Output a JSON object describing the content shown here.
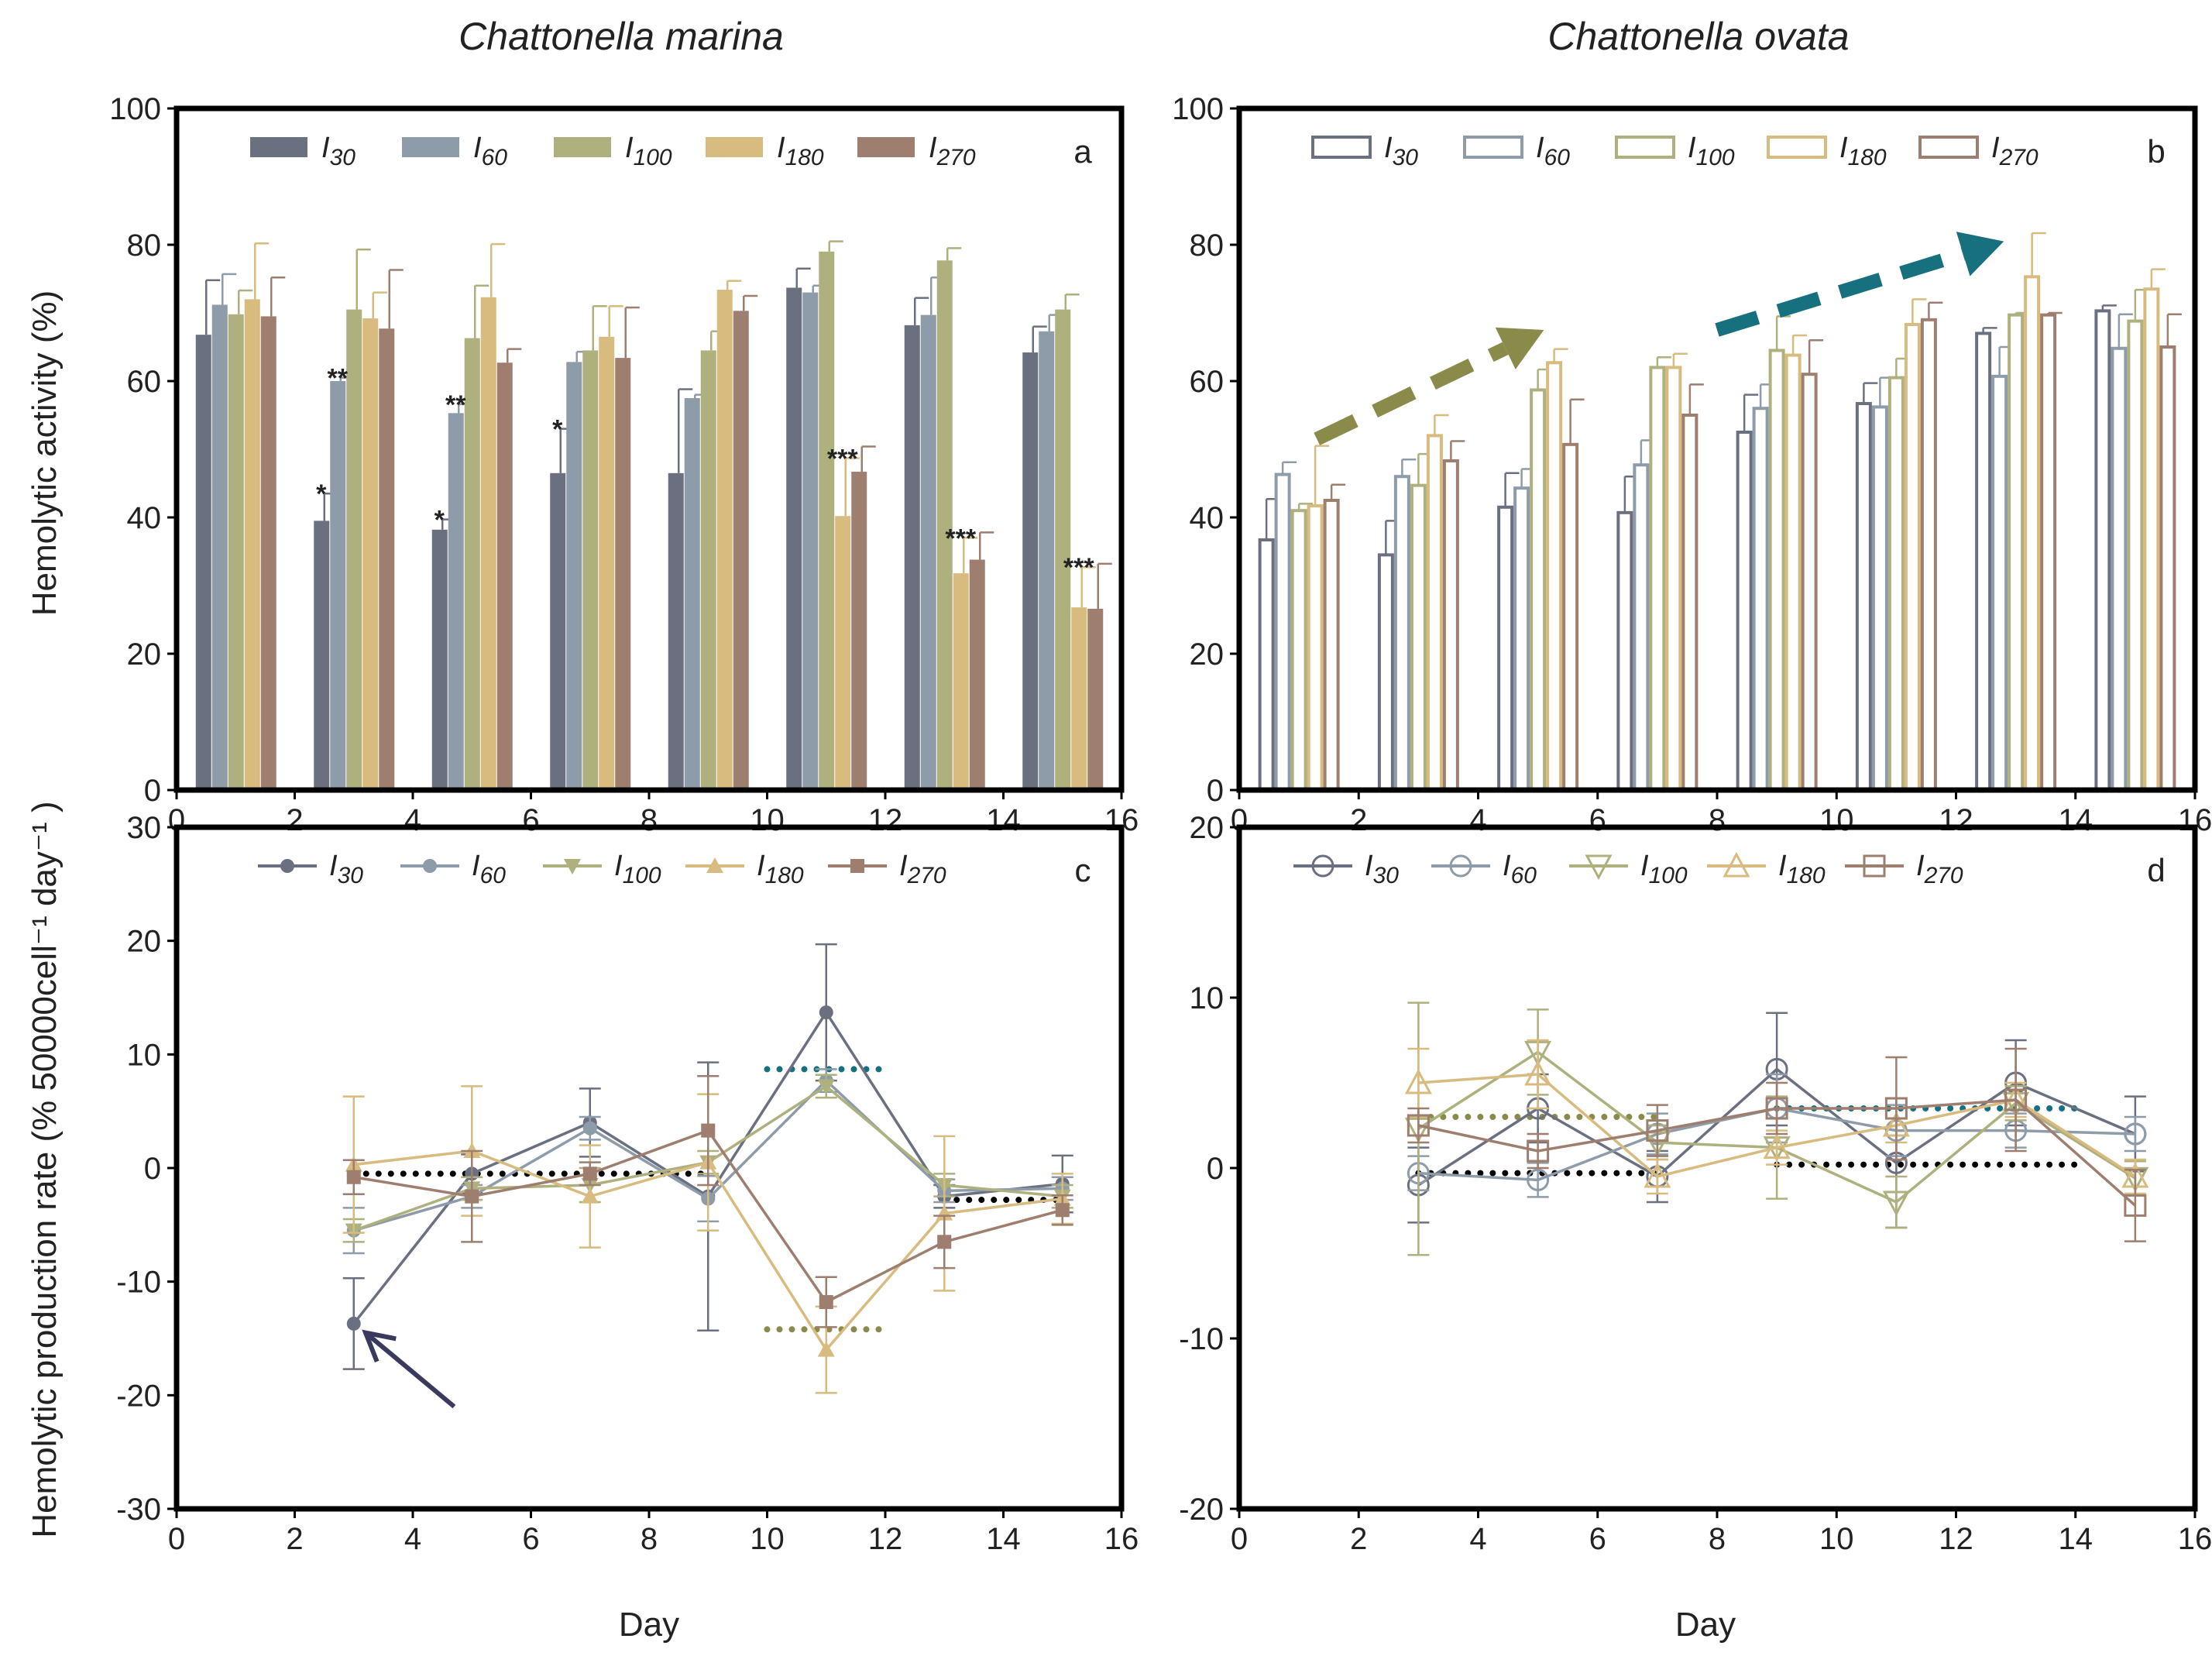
{
  "titles": {
    "left": "Chattonella marina",
    "right": "Chattonella ovata"
  },
  "axes": {
    "xlabel": "Day",
    "ylabel_top": "Hemolytic activity (%)",
    "ylabel_bottom": "Hemolytic production rate (% 50000cell⁻¹ day⁻¹ )"
  },
  "colors": {
    "I30": "#6b7080",
    "I60": "#8e9ba8",
    "I100": "#aeb07e",
    "I180": "#d8bb7f",
    "I270": "#9e7e6e",
    "olive_arrow": "#8a8a4a",
    "teal_arrow": "#16707e",
    "navy_arrow": "#3a3a5e",
    "teal_dots": "#17707e",
    "olive_dots": "#8a8a4a",
    "black_dots": "#000000"
  },
  "legend_series": [
    {
      "key": "I30",
      "label": "I",
      "sub": "30"
    },
    {
      "key": "I60",
      "label": "I",
      "sub": "60"
    },
    {
      "key": "I100",
      "label": "I",
      "sub": "100"
    },
    {
      "key": "I180",
      "label": "I",
      "sub": "180"
    },
    {
      "key": "I270",
      "label": "I",
      "sub": "270"
    }
  ],
  "chart_data": [
    {
      "panel": "a",
      "type": "bar",
      "style": "filled",
      "xlabel": "",
      "ylabel": "Hemolytic activity (%)",
      "xlim": [
        0,
        16
      ],
      "ylim": [
        0,
        100
      ],
      "xticks": [
        0,
        2,
        4,
        6,
        8,
        10,
        12,
        14,
        16
      ],
      "yticks": [
        0,
        20,
        40,
        60,
        80,
        100
      ],
      "days": [
        1,
        3,
        5,
        7,
        9,
        11,
        13,
        15
      ],
      "series": [
        {
          "name": "I30",
          "values": [
            66.8,
            39.5,
            38.2,
            46.5,
            46.5,
            73.7,
            68.2,
            64.2
          ],
          "errors": [
            8.0,
            4.0,
            1.5,
            6.5,
            12.3,
            2.8,
            4.0,
            3.8
          ]
        },
        {
          "name": "I60",
          "values": [
            71.2,
            60.0,
            55.3,
            62.8,
            57.5,
            73.0,
            69.7,
            67.3
          ],
          "errors": [
            4.5,
            0.5,
            1.3,
            1.5,
            0.5,
            1.0,
            5.5,
            2.4
          ]
        },
        {
          "name": "I100",
          "values": [
            69.8,
            70.5,
            66.3,
            64.5,
            64.5,
            79.0,
            77.7,
            70.5
          ],
          "errors": [
            3.5,
            8.8,
            7.7,
            6.5,
            2.8,
            1.5,
            1.8,
            2.2
          ]
        },
        {
          "name": "I180",
          "values": [
            72.0,
            69.2,
            72.3,
            66.5,
            73.4,
            40.2,
            31.8,
            26.8
          ],
          "errors": [
            8.2,
            3.8,
            7.8,
            4.5,
            1.3,
            8.5,
            5.2,
            5.9
          ]
        },
        {
          "name": "I270",
          "values": [
            69.5,
            67.7,
            62.7,
            63.4,
            70.3,
            46.7,
            33.8,
            26.6
          ],
          "errors": [
            5.7,
            8.6,
            2.0,
            7.4,
            2.2,
            3.7,
            4.0,
            6.6
          ]
        }
      ],
      "annotations": [
        {
          "text": "*",
          "day": 3,
          "series": "I30"
        },
        {
          "text": "**",
          "day": 3,
          "series": "I60"
        },
        {
          "text": "*",
          "day": 5,
          "series": "I30"
        },
        {
          "text": "**",
          "day": 5,
          "series": "I60"
        },
        {
          "text": "*",
          "day": 7,
          "series": "I30"
        },
        {
          "text": "***",
          "day": 11,
          "series": "I180"
        },
        {
          "text": "***",
          "day": 13,
          "series": "I180"
        },
        {
          "text": "***",
          "day": 15,
          "series": "I180"
        }
      ]
    },
    {
      "panel": "b",
      "type": "bar",
      "style": "open",
      "xlabel": "",
      "ylabel": "",
      "xlim": [
        0,
        16
      ],
      "ylim": [
        0,
        100
      ],
      "xticks": [
        0,
        2,
        4,
        6,
        8,
        10,
        12,
        14,
        16
      ],
      "yticks": [
        0,
        20,
        40,
        60,
        80,
        100
      ],
      "days": [
        1,
        3,
        5,
        7,
        9,
        11,
        13,
        15
      ],
      "series": [
        {
          "name": "I30",
          "values": [
            36.7,
            34.5,
            41.5,
            40.7,
            52.5,
            56.7,
            67.0,
            70.3
          ],
          "errors": [
            6.0,
            5.0,
            5.0,
            5.3,
            5.5,
            3.0,
            0.8,
            0.8
          ]
        },
        {
          "name": "I60",
          "values": [
            46.3,
            46.0,
            44.3,
            47.7,
            56.0,
            56.2,
            60.7,
            64.8
          ],
          "errors": [
            1.8,
            2.5,
            2.8,
            3.6,
            3.5,
            4.3,
            4.3,
            5.0
          ]
        },
        {
          "name": "I100",
          "values": [
            41.0,
            44.7,
            58.7,
            62.0,
            64.5,
            60.5,
            69.7,
            68.8
          ],
          "errors": [
            1.0,
            4.6,
            3.0,
            1.5,
            5.0,
            2.8,
            0.3,
            4.6
          ]
        },
        {
          "name": "I180",
          "values": [
            41.7,
            52.0,
            62.7,
            62.0,
            63.8,
            68.3,
            75.3,
            73.5
          ],
          "errors": [
            8.8,
            3.0,
            2.0,
            2.0,
            2.9,
            3.7,
            6.4,
            2.9
          ]
        },
        {
          "name": "I270",
          "values": [
            42.5,
            48.3,
            50.7,
            55.0,
            61.0,
            69.0,
            69.7,
            65.0
          ],
          "errors": [
            2.3,
            2.9,
            6.6,
            4.5,
            5.0,
            2.5,
            0.3,
            4.8
          ]
        }
      ],
      "annotations": []
    },
    {
      "panel": "c",
      "type": "line",
      "style": "filled",
      "xlabel": "Day",
      "ylabel": "Hemolytic production rate (% 50000cell⁻¹ day⁻¹ )",
      "xlim": [
        0,
        16
      ],
      "ylim": [
        -30,
        30
      ],
      "xticks": [
        0,
        2,
        4,
        6,
        8,
        10,
        12,
        14,
        16
      ],
      "yticks": [
        -30,
        -20,
        -10,
        0,
        10,
        20,
        30
      ],
      "x": [
        3,
        5,
        7,
        9,
        11,
        13,
        15
      ],
      "series": [
        {
          "name": "I30",
          "marker": "circle",
          "values": [
            -13.7,
            -0.5,
            4.0,
            -2.5,
            13.7,
            -2.5,
            -1.4
          ],
          "errors": [
            4.0,
            1.7,
            3.0,
            11.8,
            6.0,
            1.0,
            2.5
          ]
        },
        {
          "name": "I60",
          "marker": "circle",
          "values": [
            -5.5,
            -2.5,
            3.5,
            -2.7,
            7.7,
            -2.0,
            -1.8
          ],
          "errors": [
            2.0,
            1.0,
            1.0,
            2.0,
            1.0,
            1.0,
            1.0
          ]
        },
        {
          "name": "I100",
          "marker": "triangle-down",
          "values": [
            -5.5,
            -1.8,
            -1.5,
            0.5,
            7.2,
            -1.5,
            -2.5
          ],
          "errors": [
            1.0,
            1.0,
            1.5,
            1.0,
            1.0,
            1.0,
            1.0
          ]
        },
        {
          "name": "I180",
          "marker": "triangle-up",
          "values": [
            0.3,
            1.5,
            -2.5,
            0.5,
            -16.0,
            -4.0,
            -2.7
          ],
          "errors": [
            6.0,
            5.7,
            4.5,
            6.0,
            3.8,
            6.8,
            2.2
          ]
        },
        {
          "name": "I270",
          "marker": "square",
          "values": [
            -0.8,
            -2.5,
            -0.5,
            3.3,
            -11.8,
            -6.5,
            -3.7
          ],
          "errors": [
            1.5,
            4.0,
            1.0,
            4.8,
            2.2,
            2.3,
            1.3
          ]
        }
      ],
      "reference_lines": [
        {
          "color": "black",
          "x": [
            3,
            9
          ],
          "y": -0.5
        },
        {
          "color": "black",
          "x": [
            13,
            15
          ],
          "y": -2.8
        },
        {
          "color": "teal",
          "x": [
            10,
            12
          ],
          "y": 8.7
        },
        {
          "color": "olive",
          "x": [
            10,
            12
          ],
          "y": -14.2
        }
      ],
      "arrows": [
        {
          "color": "navy",
          "from": [
            4.7,
            -21.0
          ],
          "to": [
            3.2,
            -14.5
          ]
        }
      ]
    },
    {
      "panel": "d",
      "type": "line",
      "style": "open",
      "xlabel": "Day",
      "ylabel": "",
      "xlim": [
        0,
        16
      ],
      "ylim": [
        -20,
        20
      ],
      "xticks": [
        0,
        2,
        4,
        6,
        8,
        10,
        12,
        14,
        16
      ],
      "yticks": [
        -20,
        -10,
        0,
        10,
        20
      ],
      "x": [
        3,
        5,
        7,
        9,
        11,
        13,
        15
      ],
      "series": [
        {
          "name": "I30",
          "marker": "circle",
          "values": [
            -1.0,
            3.5,
            -0.5,
            5.8,
            0.3,
            5.0,
            2.0
          ],
          "errors": [
            2.2,
            2.0,
            1.5,
            3.3,
            3.8,
            2.5,
            2.2
          ]
        },
        {
          "name": "I60",
          "marker": "circle",
          "values": [
            -0.3,
            -0.7,
            2.0,
            3.5,
            2.2,
            2.2,
            2.0
          ],
          "errors": [
            1.0,
            1.0,
            1.2,
            2.0,
            1.5,
            1.0,
            1.0
          ]
        },
        {
          "name": "I100",
          "marker": "triangle-down",
          "values": [
            2.3,
            6.8,
            1.5,
            1.2,
            -2.0,
            3.8,
            -0.6
          ],
          "errors": [
            7.4,
            2.5,
            1.0,
            3.0,
            1.5,
            1.0,
            1.0
          ]
        },
        {
          "name": "I180",
          "marker": "triangle-up",
          "values": [
            5.0,
            5.5,
            -0.5,
            1.2,
            2.5,
            4.0,
            -0.5
          ],
          "errors": [
            2.0,
            2.0,
            1.0,
            1.0,
            1.0,
            1.0,
            1.0
          ]
        },
        {
          "name": "I270",
          "marker": "square",
          "values": [
            2.5,
            1.0,
            2.2,
            3.5,
            3.5,
            4.0,
            -2.2
          ],
          "errors": [
            1.0,
            1.0,
            1.5,
            1.5,
            3.0,
            3.0,
            2.1
          ]
        }
      ],
      "reference_lines": [
        {
          "color": "black",
          "x": [
            3,
            7
          ],
          "y": -0.3
        },
        {
          "color": "black",
          "x": [
            9,
            14
          ],
          "y": 0.2
        },
        {
          "color": "olive",
          "x": [
            3,
            7
          ],
          "y": 3.0
        },
        {
          "color": "teal",
          "x": [
            9,
            14
          ],
          "y": 3.5
        }
      ]
    }
  ],
  "trend_arrows_b": [
    {
      "color": "olive",
      "from": [
        1.3,
        51.5
      ],
      "to": [
        5.1,
        67.5
      ]
    },
    {
      "color": "teal",
      "from": [
        8.0,
        67.5
      ],
      "to": [
        12.8,
        80.5
      ]
    }
  ]
}
